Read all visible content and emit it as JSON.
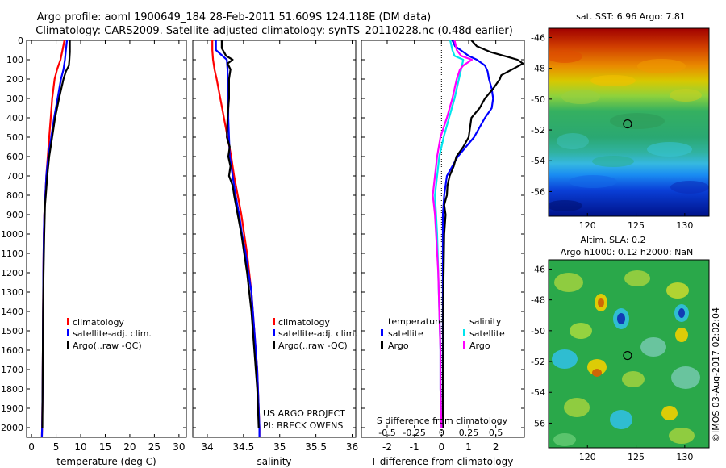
{
  "header": {
    "line1": "Argo profile: aoml 1900649_184 28-Feb-2011 51.609S 124.118E (DM data)",
    "line2": "Climatology: CARS2009. Satellite-adjusted climatology: synTS_20110228.nc (0.48d earlier)"
  },
  "depth_ticks": [
    "0",
    "100",
    "200",
    "300",
    "400",
    "500",
    "600",
    "700",
    "800",
    "900",
    "1000",
    "1100",
    "1200",
    "1300",
    "1400",
    "1500",
    "1600",
    "1700",
    "1800",
    "1900",
    "2000"
  ],
  "colors": {
    "climatology": "#ff0000",
    "satellite": "#0000ff",
    "argo": "#000000",
    "sal_satellite": "#00e5ee",
    "sal_argo": "#ff00ff"
  },
  "legend": {
    "climatology": "climatology",
    "satellite_adj": "satellite-adj. clim.",
    "argo_raw": "Argo(..raw -QC)"
  },
  "diff_legend": {
    "temperature": "temperature",
    "salinity": "salinity",
    "satellite": "satellite",
    "argo": "Argo"
  },
  "credits": {
    "project": "US ARGO PROJECT",
    "pi": "PI: BRECK OWENS"
  },
  "maps": {
    "sst_title": "sat. SST: 6.96 Argo: 7.81",
    "sla_title1": "Altim. SLA: 0.2",
    "sla_title2": "Argo h1000: 0.12 h2000: NaN",
    "lat_ticks": [
      "-46",
      "-48",
      "-50",
      "-52",
      "-54",
      "-56"
    ],
    "lon_ticks": [
      "120",
      "125",
      "130"
    ],
    "float_lat": -51.609,
    "float_lon": 124.118,
    "stamp": "©IMOS 03-Aug-2017 02:02:04"
  },
  "chart_data": [
    {
      "type": "line",
      "xlabel": "temperature (deg C)",
      "x_ticks": [
        "0",
        "5",
        "10",
        "15",
        "20",
        "25",
        "30"
      ],
      "xlim": [
        -1,
        31.5
      ],
      "ylim": [
        2050,
        0
      ],
      "series": [
        {
          "key": "climatology",
          "depth": [
            0,
            50,
            100,
            150,
            200,
            300,
            400,
            500,
            600,
            700,
            800,
            900,
            1000,
            1200,
            1400,
            1600,
            1800,
            1900,
            2000,
            2050
          ],
          "values": [
            6.7,
            6.3,
            5.9,
            5.2,
            4.7,
            4.2,
            3.9,
            3.6,
            3.3,
            3.0,
            2.8,
            2.6,
            2.5,
            2.4,
            2.35,
            2.3,
            2.25,
            2.2,
            2.15,
            2.1
          ]
        },
        {
          "key": "satellite",
          "depth": [
            0,
            50,
            100,
            150,
            200,
            300,
            400,
            500,
            600,
            700,
            800,
            900,
            1000,
            1200,
            1400,
            1600,
            1800,
            1900,
            2000,
            2050
          ],
          "values": [
            7.2,
            7.0,
            6.8,
            6.5,
            6.0,
            5.3,
            4.6,
            4.0,
            3.4,
            3.0,
            2.8,
            2.6,
            2.5,
            2.4,
            2.35,
            2.3,
            2.25,
            2.2,
            2.15,
            2.1
          ]
        },
        {
          "key": "argo",
          "depth": [
            0,
            20,
            60,
            100,
            130,
            160,
            200,
            300,
            400,
            500,
            600,
            700,
            800,
            850,
            900,
            1000,
            1200,
            1400,
            1600,
            1800,
            2000
          ],
          "values": [
            7.8,
            7.8,
            7.8,
            7.7,
            7.6,
            7.0,
            6.5,
            5.6,
            4.8,
            4.2,
            3.6,
            3.2,
            2.9,
            2.75,
            2.7,
            2.6,
            2.45,
            2.35,
            2.3,
            2.25,
            2.2
          ]
        }
      ]
    },
    {
      "type": "line",
      "xlabel": "salinity",
      "x_ticks": [
        "34",
        "34.5",
        "35",
        "35.5",
        "36"
      ],
      "x_tick_values": [
        34,
        34.5,
        35,
        35.5,
        36
      ],
      "xlim": [
        33.8,
        36.05
      ],
      "ylim": [
        2050,
        0
      ],
      "series": [
        {
          "key": "climatology",
          "depth": [
            0,
            50,
            100,
            150,
            200,
            300,
            400,
            500,
            600,
            700,
            800,
            900,
            1000,
            1100,
            1200,
            1300,
            1400,
            1500,
            1600,
            1700,
            1800,
            1900,
            2000,
            2050
          ],
          "values": [
            34.07,
            34.07,
            34.08,
            34.1,
            34.13,
            34.18,
            34.23,
            34.28,
            34.33,
            34.37,
            34.42,
            34.47,
            34.51,
            34.55,
            34.58,
            34.61,
            34.63,
            34.65,
            34.67,
            34.69,
            34.7,
            34.71,
            34.72,
            34.72
          ]
        },
        {
          "key": "satellite",
          "depth": [
            0,
            50,
            100,
            150,
            200,
            300,
            400,
            500,
            600,
            700,
            800,
            900,
            1000,
            1100,
            1200,
            1300,
            1400,
            1500,
            1600,
            1700,
            1800,
            1900,
            2000,
            2050
          ],
          "values": [
            34.12,
            34.12,
            34.27,
            34.28,
            34.28,
            34.29,
            34.29,
            34.3,
            34.31,
            34.35,
            34.39,
            34.44,
            34.48,
            34.53,
            34.57,
            34.61,
            34.63,
            34.65,
            34.67,
            34.69,
            34.7,
            34.71,
            34.72,
            34.72
          ]
        },
        {
          "key": "argo",
          "depth": [
            0,
            40,
            80,
            100,
            120,
            150,
            200,
            300,
            400,
            500,
            550,
            600,
            650,
            700,
            750,
            800,
            900,
            1000,
            1100,
            1200,
            1300,
            1400,
            1500,
            1600,
            1700,
            1800,
            1900,
            2000
          ],
          "values": [
            34.2,
            34.2,
            34.26,
            34.35,
            34.28,
            34.32,
            34.3,
            34.3,
            34.28,
            34.27,
            34.31,
            34.29,
            34.32,
            34.3,
            34.35,
            34.37,
            34.42,
            34.47,
            34.51,
            34.55,
            34.58,
            34.61,
            34.63,
            34.65,
            34.67,
            34.69,
            34.7,
            34.71
          ]
        }
      ]
    },
    {
      "type": "line",
      "xlabel": "T difference from climatology",
      "top_label": "S difference from climatology",
      "x_ticks": [
        "-2",
        "-1",
        "0",
        "1",
        "2"
      ],
      "x_tick_values": [
        -2,
        -1,
        0,
        1,
        2
      ],
      "s_ticks": [
        "-0.5",
        "-0.25",
        "0",
        "0.25",
        "0.5"
      ],
      "s_tick_values": [
        -0.5,
        -0.25,
        0,
        0.25,
        0.5
      ],
      "xlim": [
        -2.95,
        3.05
      ],
      "ylim": [
        2050,
        0
      ],
      "series": [
        {
          "key": "temp_satellite",
          "depth": [
            0,
            30,
            60,
            80,
            100,
            130,
            160,
            200,
            250,
            300,
            350,
            400,
            500,
            600,
            700,
            800,
            900,
            1000,
            1200,
            1400,
            1600,
            1800,
            2000
          ],
          "values": [
            0.4,
            0.5,
            0.8,
            1.0,
            1.3,
            1.6,
            1.7,
            1.75,
            1.85,
            1.9,
            1.85,
            1.6,
            1.2,
            0.6,
            0.2,
            0.1,
            0.05,
            0.05,
            0.05,
            0.05,
            0.05,
            0.05,
            0.05
          ]
        },
        {
          "key": "temp_argo",
          "depth": [
            0,
            30,
            60,
            80,
            100,
            120,
            150,
            180,
            200,
            250,
            300,
            350,
            400,
            500,
            550,
            600,
            650,
            700,
            750,
            800,
            850,
            900,
            1000,
            1200,
            1400,
            1600,
            1800,
            2000
          ],
          "values": [
            1.1,
            1.3,
            1.8,
            2.3,
            2.8,
            3.0,
            2.6,
            2.2,
            2.15,
            1.9,
            1.6,
            1.4,
            1.1,
            1.0,
            0.8,
            0.55,
            0.45,
            0.3,
            0.22,
            0.2,
            0.1,
            0.15,
            0.1,
            0.08,
            0.06,
            0.06,
            0.05,
            0.05
          ]
        },
        {
          "key": "sal_satellite",
          "depth": [
            0,
            50,
            80,
            100,
            150,
            200,
            300,
            400,
            500,
            600,
            700,
            800,
            900,
            1000,
            1200,
            1400,
            1600,
            1800,
            2000
          ],
          "values": [
            0.08,
            0.1,
            0.12,
            0.2,
            0.18,
            0.16,
            0.12,
            0.07,
            0.02,
            -0.02,
            -0.04,
            -0.06,
            -0.05,
            -0.04,
            -0.03,
            -0.02,
            -0.01,
            -0.01,
            0.0
          ]
        },
        {
          "key": "sal_argo",
          "depth": [
            0,
            50,
            80,
            100,
            130,
            150,
            200,
            300,
            400,
            500,
            600,
            700,
            800,
            850,
            900,
            1000,
            1200,
            1400,
            1600,
            1800,
            2000
          ],
          "values": [
            0.12,
            0.14,
            0.18,
            0.28,
            0.2,
            0.17,
            0.14,
            0.1,
            0.05,
            -0.01,
            -0.04,
            -0.06,
            -0.08,
            -0.07,
            -0.06,
            -0.05,
            -0.03,
            -0.02,
            -0.01,
            -0.01,
            0.0
          ]
        }
      ]
    }
  ]
}
